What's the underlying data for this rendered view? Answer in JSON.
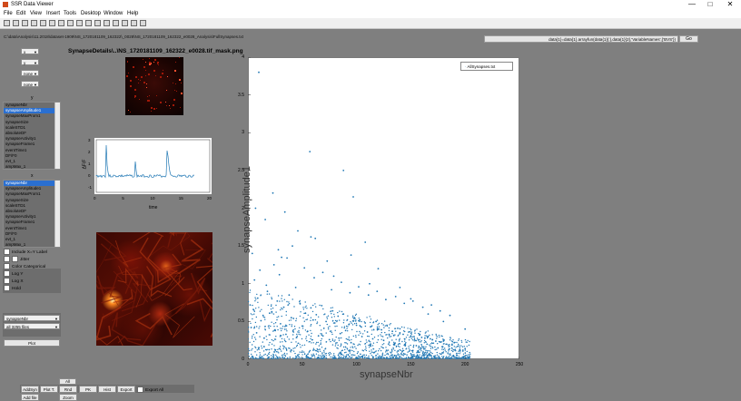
{
  "window": {
    "title": "SSR Data Viewer",
    "minimize": "—",
    "maximize": "□",
    "close": "✕"
  },
  "menu": [
    "File",
    "Edit",
    "View",
    "Insert",
    "Tools",
    "Desktop",
    "Window",
    "Help"
  ],
  "toolbar_icons": [
    "new-file-icon",
    "open-icon",
    "save-icon",
    "print-icon",
    "cursor-icon",
    "zoom-in-icon",
    "zoom-out-icon",
    "pan-icon",
    "rotate-icon",
    "data-cursor-icon",
    "brush-icon",
    "link-icon",
    "colorbar-icon",
    "legend-icon",
    "grid-icon",
    "plot-tools-icon"
  ],
  "path": "C:\\data\\Analysis\\11.2018\\dataset-1909\\NS_1720181109_162322\\_0028\\NS_1720181109_162322_e0028_Analysis\\FullSynapses.txt",
  "command": {
    "value": "data{1}=data{1}.arrayfun(data{1}{:},data{1}{2},'VariableNames',{'BVS'})",
    "go_label": "Go"
  },
  "left_panel": {
    "dropdowns": [
      "x",
      "y",
      "none",
      "none"
    ],
    "y_label": "y",
    "y_list": [
      "synapseNbr",
      "synapseAmplitude1",
      "synapseMaxProm1",
      "synapseSize",
      "scaleSTD1",
      "absoluteDF",
      "synapseActivity1",
      "synapseFrame1",
      "eventTime1",
      "DF/F0",
      "evt_1",
      "ampMax_1",
      "areaUnderCurve_1",
      "synapseLength_1",
      "evtWidth_1",
      "xCentroid"
    ],
    "y_selected": 1,
    "x_label": "x",
    "x_list": [
      "synapseNbr",
      "synapseAmplitude1",
      "synapseMaxProm1",
      "synapseSize",
      "scaleSTD1",
      "absoluteDF",
      "synapseActivity1",
      "synapseFrame1",
      "eventTime1",
      "DF/F0",
      "evt_1",
      "ampMax_1",
      "areaUnderCurve_1",
      "synapseLength_1",
      "evtWidth_1",
      "xCentroid"
    ],
    "x_selected": 0,
    "checkboxes": [
      "Include X=Y Label",
      "Jitter",
      "Color Categorical",
      "Log Y",
      "Log X",
      "Hold"
    ],
    "box_checked": [
      false,
      false,
      false,
      false,
      false,
      false
    ],
    "bottom_dropdowns": [
      "synapseNbr",
      "all 3255 files"
    ],
    "plot_button": "Plot"
  },
  "bottom_buttons": {
    "top": "All",
    "row": [
      "AddSyn",
      "Plot T.",
      "Rnd Well",
      "PK",
      "Hist",
      "Export"
    ],
    "checkbox": "Export All",
    "bottom": [
      "Add file",
      "Zoom"
    ]
  },
  "figure_title": "SynapseDetails\\..\\NS_1720181109_162322_e0028.tif_mask.png",
  "trace": {
    "xlabel": "time",
    "ylabel": "ΔF/F",
    "xticks": [
      "0",
      "5",
      "10",
      "15",
      "20"
    ],
    "yticks": [
      "-1",
      "0",
      "1",
      "2",
      "3"
    ]
  },
  "chart_data": {
    "type": "scatter",
    "title": "",
    "xlabel": "synapseNbr",
    "ylabel": "synapseAmplitude1",
    "xlim": [
      0,
      250
    ],
    "ylim": [
      0,
      4
    ],
    "xticks": [
      "0",
      "50",
      "100",
      "150",
      "200",
      "250"
    ],
    "yticks": [
      "0",
      "0.5",
      "1",
      "1.5",
      "2",
      "2.5",
      "3",
      "3.5",
      "4"
    ],
    "legend": "AllSynapses.txt",
    "legend_position": "top-right",
    "color": "#1f77b4",
    "series": [
      {
        "name": "AllSynapses.txt",
        "x": [
          3,
          8,
          12,
          15,
          20,
          25,
          30,
          35,
          40,
          45,
          50,
          55,
          60,
          65,
          70,
          75,
          80,
          85,
          90,
          95,
          100,
          105,
          110,
          115,
          120,
          125,
          130,
          135,
          140,
          145,
          150,
          155,
          160,
          165,
          170,
          175,
          180,
          185,
          190,
          195,
          200,
          2,
          5,
          9,
          14,
          18,
          22,
          27,
          33,
          38,
          42,
          48,
          53,
          58,
          63,
          68,
          72,
          78,
          83,
          88,
          93,
          98,
          103,
          108,
          113,
          118,
          123,
          128,
          133,
          138,
          143,
          148,
          153,
          158,
          163,
          168,
          173,
          178,
          183,
          188,
          193,
          198,
          6,
          11,
          17,
          24,
          29,
          36,
          44,
          52,
          61,
          69,
          77,
          86,
          94,
          102,
          111,
          119,
          127,
          136,
          144,
          152,
          161,
          169,
          177,
          186,
          28,
          58,
          95,
          108,
          88,
          4,
          120,
          46,
          16,
          73,
          140,
          34,
          62,
          97,
          10,
          150,
          41,
          79,
          23,
          166,
          57,
          180,
          112,
          31,
          7,
          200
        ],
        "y": [
          0.42,
          0.35,
          0.51,
          0.28,
          0.61,
          0.39,
          0.47,
          0.33,
          0.55,
          0.29,
          0.44,
          0.37,
          0.52,
          0.31,
          0.41,
          0.26,
          0.48,
          0.34,
          0.38,
          0.22,
          0.45,
          0.3,
          0.36,
          0.27,
          0.4,
          0.25,
          0.33,
          0.21,
          0.35,
          0.19,
          0.31,
          0.18,
          0.29,
          0.2,
          0.26,
          0.15,
          0.24,
          0.13,
          0.22,
          0.12,
          0.14,
          0.72,
          0.66,
          0.81,
          0.58,
          0.9,
          0.63,
          0.77,
          0.69,
          0.85,
          0.54,
          0.74,
          0.61,
          0.68,
          0.59,
          0.71,
          0.5,
          0.64,
          0.57,
          0.6,
          0.46,
          0.55,
          0.52,
          0.48,
          0.43,
          0.5,
          0.39,
          0.45,
          0.37,
          0.41,
          0.33,
          0.36,
          0.3,
          0.32,
          0.28,
          0.27,
          0.24,
          0.23,
          0.2,
          0.19,
          0.17,
          0.12,
          1.05,
          1.18,
          0.98,
          1.25,
          1.12,
          1.34,
          0.95,
          1.21,
          1.08,
          1.15,
          0.92,
          1.02,
          0.88,
          0.96,
          0.85,
          0.9,
          0.79,
          0.83,
          0.74,
          0.77,
          0.69,
          0.72,
          0.64,
          0.58,
          1.45,
          1.62,
          1.38,
          1.55,
          2.5,
          1.4,
          1.2,
          1.7,
          1.85,
          1.3,
          0.95,
          1.95,
          1.6,
          2.15,
          3.8,
          0.8,
          1.5,
          1.1,
          2.2,
          0.6,
          2.75,
          0.5,
          1.0,
          1.35,
          2.0,
          0.4
        ]
      }
    ]
  }
}
